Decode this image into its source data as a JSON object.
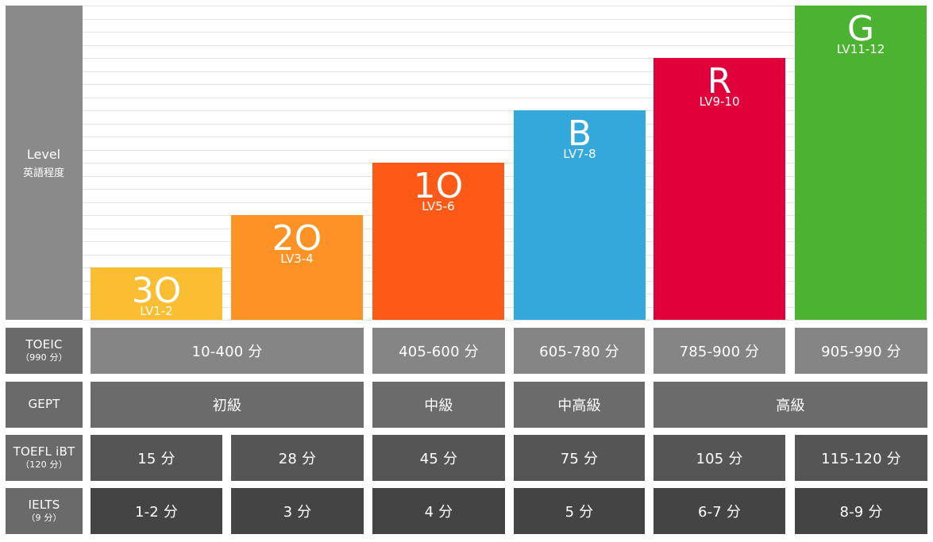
{
  "chart_data": {
    "type": "bar",
    "title": "",
    "ylabel": "Level",
    "ylabel_sub": "英語程度",
    "ylim": [
      0,
      12
    ],
    "grid": true,
    "categories": [
      "LV1-2",
      "LV3-4",
      "LV5-6",
      "LV7-8",
      "LV9-10",
      "LV11-12"
    ],
    "letters": [
      "3O",
      "2O",
      "1O",
      "B",
      "R",
      "G"
    ],
    "values": [
      2,
      4,
      6,
      8,
      10,
      12
    ],
    "colors": [
      "#fbbd31",
      "#fd9326",
      "#fe5a17",
      "#35a8db",
      "#e0003a",
      "#4cb232"
    ]
  },
  "table": {
    "colors": [
      "#858585",
      "#6b6b6b",
      "#555555",
      "#444444"
    ],
    "header_color": "#6a6a6a",
    "rows": [
      {
        "label": "TOEIC",
        "sub": "（990 分）",
        "cells": [
          {
            "text": "10-400 分",
            "span": 2
          },
          {
            "text": "405-600 分",
            "span": 1
          },
          {
            "text": "605-780 分",
            "span": 1
          },
          {
            "text": "785-900 分",
            "span": 1
          },
          {
            "text": "905-990 分",
            "span": 1
          }
        ]
      },
      {
        "label": "GEPT",
        "sub": "",
        "cells": [
          {
            "text": "初級",
            "span": 2
          },
          {
            "text": "中級",
            "span": 1
          },
          {
            "text": "中高級",
            "span": 1
          },
          {
            "text": "高級",
            "span": 2
          }
        ]
      },
      {
        "label": "TOEFL iBT",
        "sub": "（120 分）",
        "cells": [
          {
            "text": "15 分",
            "span": 1
          },
          {
            "text": "28 分",
            "span": 1
          },
          {
            "text": "45 分",
            "span": 1
          },
          {
            "text": "75 分",
            "span": 1
          },
          {
            "text": "105 分",
            "span": 1
          },
          {
            "text": "115-120 分",
            "span": 1
          }
        ]
      },
      {
        "label": "IELTS",
        "sub": "（9 分）",
        "cells": [
          {
            "text": "1-2 分",
            "span": 1
          },
          {
            "text": "3 分",
            "span": 1
          },
          {
            "text": "4 分",
            "span": 1
          },
          {
            "text": "5 分",
            "span": 1
          },
          {
            "text": "6-7 分",
            "span": 1
          },
          {
            "text": "8-9 分",
            "span": 1
          }
        ]
      }
    ]
  }
}
